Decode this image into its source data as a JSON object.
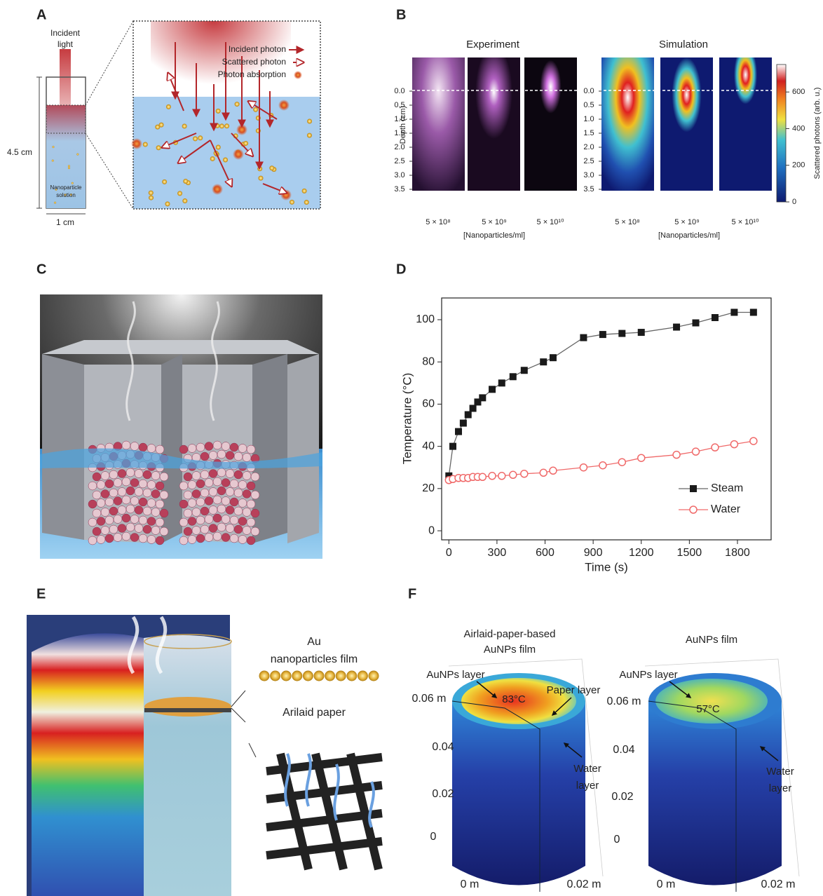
{
  "panels": {
    "a": {
      "label": "A",
      "incident_light": [
        "Incident",
        "light"
      ],
      "height": "4.5 cm",
      "width": "1 cm",
      "solution": [
        "Nanoparticle",
        "solution"
      ],
      "legend": [
        "Incident photon",
        "Scattered photon",
        "Photon absorption"
      ]
    },
    "b": {
      "label": "B",
      "y_title": "Depth (cm)",
      "ylim": [
        -1.2,
        3.5
      ],
      "yticks": [
        {
          "value": 0,
          "label": "0.0"
        },
        0.5,
        {
          "value": 1,
          "label": "1.0"
        },
        1.5,
        {
          "value": 2,
          "label": "2.0"
        },
        2.5,
        {
          "value": 3,
          "label": "3.0"
        },
        3.5
      ],
      "groups": [
        {
          "title": "Experiment",
          "x_labels": [
            "5 × 10⁸",
            "5 × 10⁹",
            "5 × 10¹⁰"
          ],
          "x_title": "[Nanoparticles/ml]"
        },
        {
          "title": "Simulation",
          "x_labels": [
            "5 × 10⁸",
            "5 × 10⁹",
            "5 × 10¹⁰"
          ],
          "x_title": "[Nanoparticles/ml]"
        }
      ],
      "colorbar": {
        "title": "Scattered photons (arb. u.)",
        "lim": [
          0,
          750
        ],
        "ticks": [
          0,
          200,
          400,
          600
        ]
      }
    },
    "c": {
      "label": "C"
    },
    "d": {
      "label": "D"
    },
    "e": {
      "label": "E",
      "film": [
        "Au",
        "nanoparticles film"
      ],
      "paper": "Arilaid paper"
    },
    "f": {
      "label": "F",
      "plots": [
        {
          "title": [
            "Airlaid-paper-based",
            "AuNPs film"
          ],
          "layer": "AuNPs layer",
          "temperature": "83°C",
          "paper_layer": "Paper layer",
          "water_layer": [
            "Water",
            "layer"
          ],
          "z_ticks": [
            "0.06 m",
            "0.04",
            "0.02",
            "0"
          ],
          "x_ticks": [
            "0 m",
            "0.02 m"
          ]
        },
        {
          "title": [
            "AuNPs film"
          ],
          "layer": "AuNPs layer",
          "temperature": "57°C",
          "water_layer": [
            "Water",
            "layer"
          ],
          "z_ticks": [
            "0.06 m",
            "0.04",
            "0.02",
            "0"
          ],
          "x_ticks": [
            "0 m",
            "0.02 m"
          ]
        }
      ]
    }
  },
  "chart_data": {
    "type": "line",
    "x_title": "Time (s)",
    "y_title": "Temperature (°C)",
    "x": [
      0,
      25,
      60,
      90,
      120,
      150,
      180,
      210,
      270,
      330,
      400,
      470,
      590,
      650,
      840,
      960,
      1080,
      1200,
      1420,
      1540,
      1660,
      1780,
      1900
    ],
    "series": [
      {
        "name": "Steam",
        "color": "#1a1a1a",
        "marker": "square",
        "values": [
          26,
          40,
          47,
          51,
          55,
          58,
          61,
          63,
          67,
          70,
          73,
          76,
          80,
          82,
          91.5,
          93,
          93.5,
          94,
          96.5,
          98.5,
          101,
          103.5,
          103.5
        ]
      },
      {
        "name": "Water",
        "color": "#f06a6a",
        "marker": "circle",
        "values": [
          24,
          24.5,
          25,
          25,
          25,
          25.5,
          25.5,
          25.5,
          26,
          26,
          26.5,
          27,
          27.5,
          28.5,
          30,
          31,
          32.5,
          34.5,
          36,
          37.5,
          39.5,
          41,
          42.5
        ]
      }
    ],
    "xlim": [
      -45,
      2010
    ],
    "ylim": [
      -4.3,
      110.3
    ],
    "xticks": [
      0,
      300,
      600,
      900,
      1200,
      1500,
      1800
    ],
    "yticks": [
      0,
      20,
      40,
      60,
      80,
      100
    ],
    "legend": "lower right"
  }
}
